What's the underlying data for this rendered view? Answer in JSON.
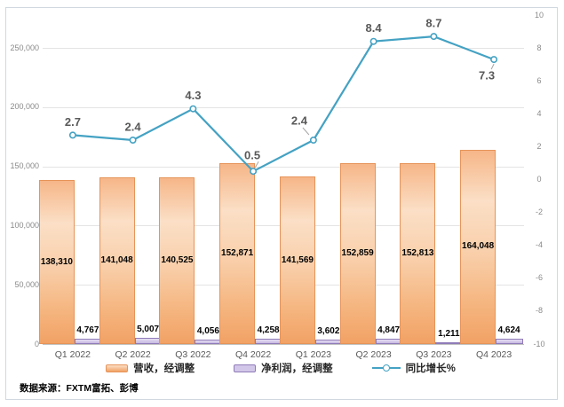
{
  "source_note": "数据来源：FXTM富拓、彭博",
  "colors": {
    "revenue_border": "#E6945A",
    "revenue_fill_light": "#FBDFC6",
    "revenue_fill_deep": "#F2A265",
    "profit_border": "#8F7BB8",
    "profit_fill": "#D2C7E8",
    "line": "#44A2C3",
    "grid": "#E4E4E4",
    "axis_text": "#8A8A8A",
    "category_text": "#595959",
    "growth_label_text": "#595959",
    "frame_border": "#D2D8E0"
  },
  "chart_data": {
    "type": "combo-bar-line",
    "categories": [
      "Q1 2022",
      "Q2 2022",
      "Q3 2022",
      "Q4 2022",
      "Q1 2023",
      "Q2 2023",
      "Q3 2023",
      "Q4 2023"
    ],
    "series": [
      {
        "name": "营收，经调整",
        "type": "bar",
        "axis": "left",
        "values": [
          138310,
          141048,
          140525,
          152871,
          141569,
          152859,
          152813,
          164048
        ],
        "labels": [
          "138,310",
          "141,048",
          "140,525",
          "152,871",
          "141,569",
          "152,859",
          "152,813",
          "164,048"
        ]
      },
      {
        "name": "净利润，经调整",
        "type": "bar",
        "axis": "left",
        "values": [
          4767,
          5007,
          4056,
          4258,
          3602,
          4847,
          1211,
          4624
        ],
        "labels": [
          "4,767",
          "5,007",
          "4,056",
          "4,258",
          "3,602",
          "4,847",
          "1,211",
          "4,624"
        ]
      },
      {
        "name": "同比增长%",
        "type": "line",
        "axis": "right",
        "values": [
          2.7,
          2.4,
          4.3,
          0.5,
          2.4,
          8.4,
          8.7,
          7.3
        ],
        "labels": [
          "2.7",
          "2.4",
          "4.3",
          "0.5",
          "2.4",
          "8.4",
          "8.7",
          "7.3"
        ],
        "point_label_offsets": [
          {
            "dx": 0,
            "dy": -15,
            "leader": null
          },
          {
            "dx": 0,
            "dy": -15,
            "leader": null
          },
          {
            "dx": 0,
            "dy": -15,
            "leader": null
          },
          {
            "dx": -1,
            "dy": -18,
            "leader": [
              2,
              -4,
              6,
              -11
            ]
          },
          {
            "dx": -16,
            "dy": -22,
            "leader": [
              -5,
              -6,
              -12,
              -14
            ]
          },
          {
            "dx": 0,
            "dy": -15,
            "leader": null
          },
          {
            "dx": 0,
            "dy": -15,
            "leader": null
          },
          {
            "dx": -8,
            "dy": 18,
            "leader": [
              0,
              5,
              -3,
              11
            ]
          }
        ]
      }
    ],
    "left_axis": {
      "min": 0,
      "max": 277778,
      "tick_values": [
        0,
        50000,
        100000,
        150000,
        200000,
        250000
      ],
      "ticks": [
        "0",
        "50,000",
        "100,000",
        "150,000",
        "200,000",
        "250,000"
      ]
    },
    "right_axis": {
      "min": -10,
      "max": 10,
      "tick_values": [
        10,
        8,
        6,
        4,
        2,
        0,
        -2,
        -4,
        -6,
        -8,
        -10
      ],
      "ticks": [
        "10",
        "8",
        "6",
        "4",
        "2",
        "0",
        "-2",
        "-4",
        "-6",
        "-8",
        "-10"
      ]
    },
    "grid": true,
    "legend_position": "bottom"
  }
}
